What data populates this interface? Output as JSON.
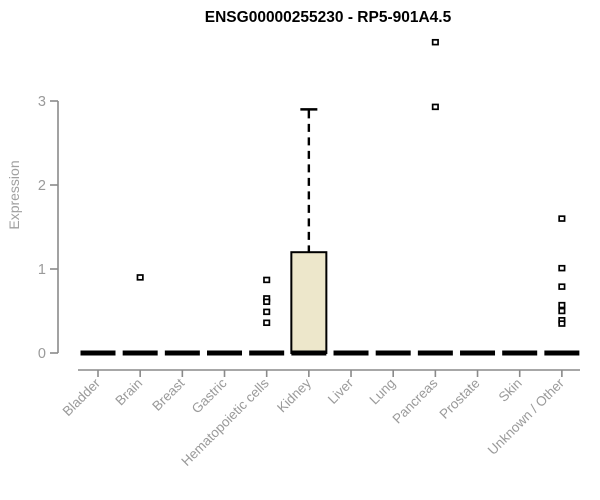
{
  "chart_data": {
    "type": "box",
    "title": "ENSG00000255230 - RP5-901A4.5",
    "ylabel": "Expression",
    "xlabel": "",
    "ylim": [
      0,
      3
    ],
    "yticks": [
      0,
      1,
      2,
      3
    ],
    "grid": false,
    "legend": false,
    "categories": [
      "Bladder",
      "Brain",
      "Breast",
      "Gastric",
      "Hematopoietic cells",
      "Kidney",
      "Liver",
      "Lung",
      "Pancreas",
      "Prostate",
      "Skin",
      "Unknown / Other"
    ],
    "series": [
      {
        "name": "Bladder",
        "whisker_low": 0,
        "q1": 0,
        "median": 0,
        "q3": 0,
        "whisker_high": 0,
        "outliers": []
      },
      {
        "name": "Brain",
        "whisker_low": 0,
        "q1": 0,
        "median": 0,
        "q3": 0,
        "whisker_high": 0,
        "outliers": [
          0.9
        ]
      },
      {
        "name": "Breast",
        "whisker_low": 0,
        "q1": 0,
        "median": 0,
        "q3": 0,
        "whisker_high": 0,
        "outliers": []
      },
      {
        "name": "Gastric",
        "whisker_low": 0,
        "q1": 0,
        "median": 0,
        "q3": 0,
        "whisker_high": 0,
        "outliers": []
      },
      {
        "name": "Hematopoietic cells",
        "whisker_low": 0,
        "q1": 0,
        "median": 0,
        "q3": 0,
        "whisker_high": 0,
        "outliers": [
          0.87,
          0.65,
          0.61,
          0.49,
          0.36
        ]
      },
      {
        "name": "Kidney",
        "whisker_low": 0,
        "q1": 0,
        "median": 0,
        "q3": 1.2,
        "whisker_high": 2.9,
        "outliers": []
      },
      {
        "name": "Liver",
        "whisker_low": 0,
        "q1": 0,
        "median": 0,
        "q3": 0,
        "whisker_high": 0,
        "outliers": []
      },
      {
        "name": "Lung",
        "whisker_low": 0,
        "q1": 0,
        "median": 0,
        "q3": 0,
        "whisker_high": 0,
        "outliers": []
      },
      {
        "name": "Pancreas",
        "whisker_low": 0,
        "q1": 0,
        "median": 0,
        "q3": 0,
        "whisker_high": 0,
        "outliers": [
          3.7,
          2.93
        ]
      },
      {
        "name": "Prostate",
        "whisker_low": 0,
        "q1": 0,
        "median": 0,
        "q3": 0,
        "whisker_high": 0,
        "outliers": []
      },
      {
        "name": "Skin",
        "whisker_low": 0,
        "q1": 0,
        "median": 0,
        "q3": 0,
        "whisker_high": 0,
        "outliers": []
      },
      {
        "name": "Unknown / Other",
        "whisker_low": 0,
        "q1": 0,
        "median": 0,
        "q3": 0,
        "whisker_high": 0,
        "outliers": [
          1.6,
          1.01,
          0.79,
          0.57,
          0.5,
          0.39,
          0.35
        ]
      }
    ],
    "colors": {
      "background": "#ffffff",
      "title": "#000000",
      "axis_line": "#8a8a8a",
      "tick_label": "#9a9a9a",
      "axis_label": "#a0a0a0",
      "box_fill": "#ede7cb",
      "box_stroke": "#000000",
      "median": "#000000",
      "outlier_stroke": "#000000",
      "outlier_fill": "#ffffff"
    }
  }
}
